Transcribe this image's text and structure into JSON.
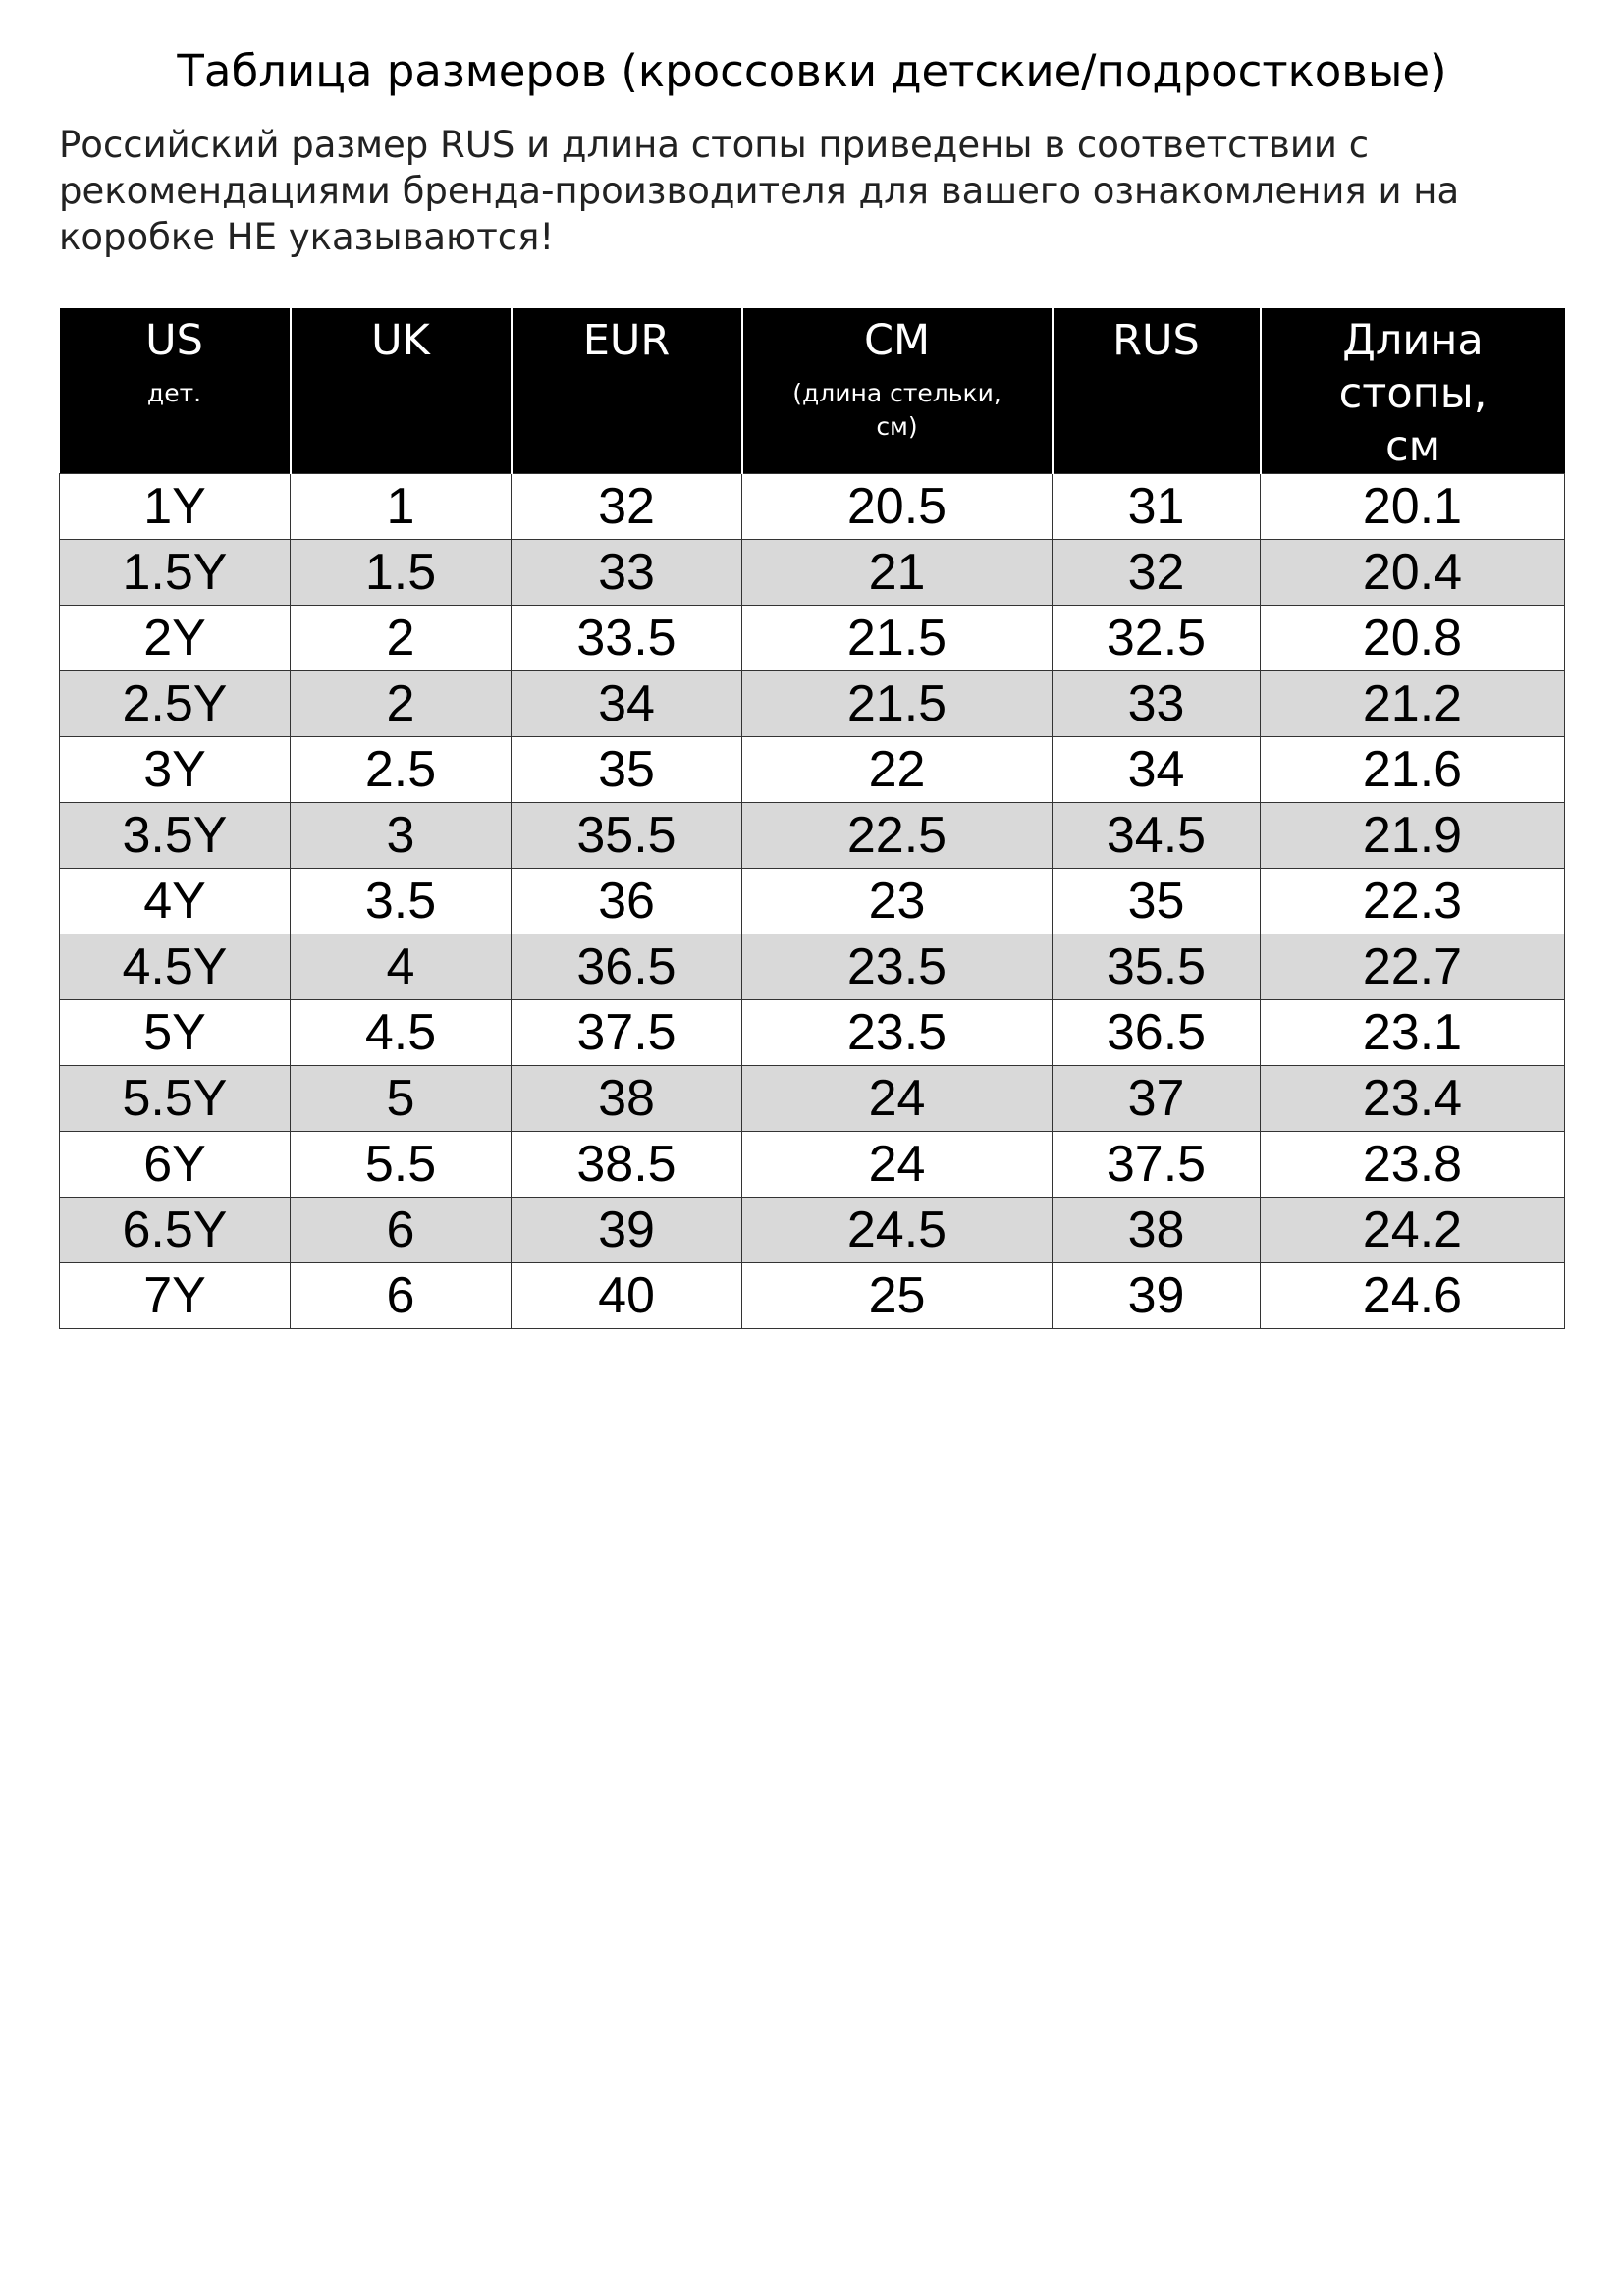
{
  "title": "Таблица размеров (кроссовки детские/подростковые)",
  "subtitle": "Российский размер RUS и длина стопы приведены в соответствии с рекомендациями бренда-производителя для вашего ознакомления и на коробке НЕ указываются!",
  "table": {
    "headers": [
      {
        "main": "US",
        "sub": "дет."
      },
      {
        "main": "UK",
        "sub": ""
      },
      {
        "main": "EUR",
        "sub": ""
      },
      {
        "main": "CM",
        "sub": "(длина стельки, см)"
      },
      {
        "main": "RUS",
        "sub": ""
      },
      {
        "main": "Длина стопы, см",
        "sub": ""
      }
    ],
    "rows": [
      [
        "1Y",
        "1",
        "32",
        "20.5",
        "31",
        "20.1"
      ],
      [
        "1.5Y",
        "1.5",
        "33",
        "21",
        "32",
        "20.4"
      ],
      [
        "2Y",
        "2",
        "33.5",
        "21.5",
        "32.5",
        "20.8"
      ],
      [
        "2.5Y",
        "2",
        "34",
        "21.5",
        "33",
        "21.2"
      ],
      [
        "3Y",
        "2.5",
        "35",
        "22",
        "34",
        "21.6"
      ],
      [
        "3.5Y",
        "3",
        "35.5",
        "22.5",
        "34.5",
        "21.9"
      ],
      [
        "4Y",
        "3.5",
        "36",
        "23",
        "35",
        "22.3"
      ],
      [
        "4.5Y",
        "4",
        "36.5",
        "23.5",
        "35.5",
        "22.7"
      ],
      [
        "5Y",
        "4.5",
        "37.5",
        "23.5",
        "36.5",
        "23.1"
      ],
      [
        "5.5Y",
        "5",
        "38",
        "24",
        "37",
        "23.4"
      ],
      [
        "6Y",
        "5.5",
        "38.5",
        "24",
        "37.5",
        "23.8"
      ],
      [
        "6.5Y",
        "6",
        "39",
        "24.5",
        "38",
        "24.2"
      ],
      [
        "7Y",
        "6",
        "40",
        "25",
        "39",
        "24.6"
      ]
    ],
    "colors": {
      "header_bg": "#000000",
      "header_text": "#ffffff",
      "alt_row_bg": "#d9d9d9"
    }
  }
}
